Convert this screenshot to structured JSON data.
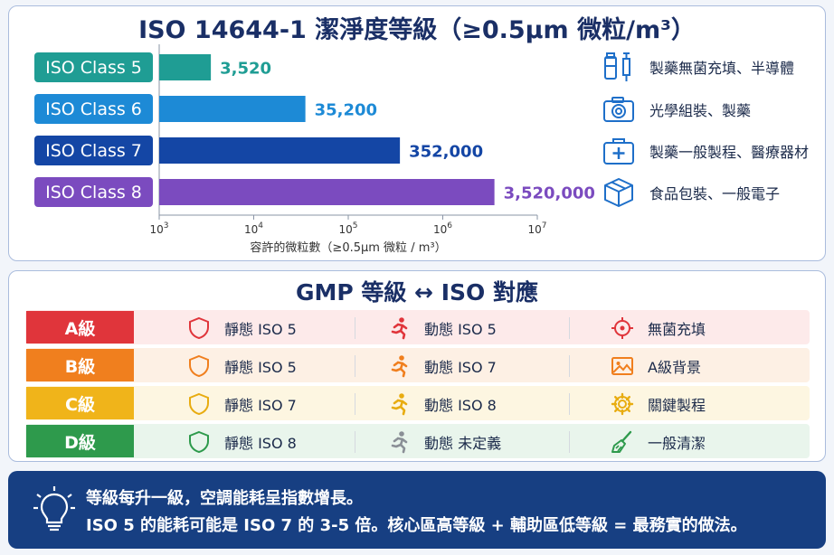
{
  "chart_data": {
    "type": "bar",
    "orientation": "horizontal",
    "title": "ISO 14644-1 潔淨度等級（≥0.5µm 微粒/m³）",
    "xlabel": "容許的微粒數（≥0.5µm 微粒 / m³）",
    "xscale": "log",
    "xlim": [
      1000,
      10000000
    ],
    "xticks": [
      1000,
      10000,
      100000,
      1000000,
      10000000
    ],
    "categories": [
      "ISO Class 5",
      "ISO Class 6",
      "ISO Class 7",
      "ISO Class 8"
    ],
    "values": [
      3520,
      35200,
      352000,
      3520000
    ],
    "value_labels": [
      "3,520",
      "35,200",
      "352,000",
      "3,520,000"
    ],
    "colors": [
      "#1f9d94",
      "#1d8ad6",
      "#1446a5",
      "#7b4bbf"
    ],
    "applications": [
      {
        "label": "製藥無菌充填、半導體",
        "icon": "vial-syringe-icon"
      },
      {
        "label": "光學組裝、製藥",
        "icon": "camera-icon"
      },
      {
        "label": "製藥一般製程、醫療器材",
        "icon": "medical-kit-icon"
      },
      {
        "label": "食品包裝、一般電子",
        "icon": "package-box-icon"
      }
    ]
  },
  "gmp": {
    "title": "GMP 等級 ↔ ISO 對應",
    "rows": [
      {
        "grade": "A級",
        "static": "靜態 ISO 5",
        "dynamic": "動態 ISO 5",
        "use": "無菌充填",
        "color": "#e0353b",
        "bg": "#fdeaea",
        "icon_color": "#e0353b",
        "dynamic_color": "#e0353b",
        "use_icon": "crosshair-icon"
      },
      {
        "grade": "B級",
        "static": "靜態 ISO 5",
        "dynamic": "動態 ISO 7",
        "use": "A級背景",
        "color": "#f07f1e",
        "bg": "#fdf0e4",
        "icon_color": "#f07f1e",
        "dynamic_color": "#f07f1e",
        "use_icon": "landscape-image-icon"
      },
      {
        "grade": "C級",
        "static": "靜態 ISO 7",
        "dynamic": "動態 ISO 8",
        "use": "關鍵製程",
        "color": "#f0b41a",
        "bg": "#fdf6e1",
        "icon_color": "#e8ac10",
        "dynamic_color": "#e8ac10",
        "use_icon": "gear-icon"
      },
      {
        "grade": "D級",
        "static": "靜態 ISO 8",
        "dynamic": "動態 未定義",
        "use": "一般清潔",
        "color": "#2e9a4c",
        "bg": "#e9f5ec",
        "icon_color": "#2e9a4c",
        "dynamic_color": "#8a8f96",
        "use_icon": "broom-icon"
      }
    ]
  },
  "tip": {
    "icon": "lightbulb-icon",
    "line1": "等級每升一級，空調能耗呈指數增長。",
    "line2": "ISO 5 的能耗可能是 ISO 7 的 3-5 倍。核心區高等級 + 輔助區低等級 = 最務實的做法。"
  }
}
